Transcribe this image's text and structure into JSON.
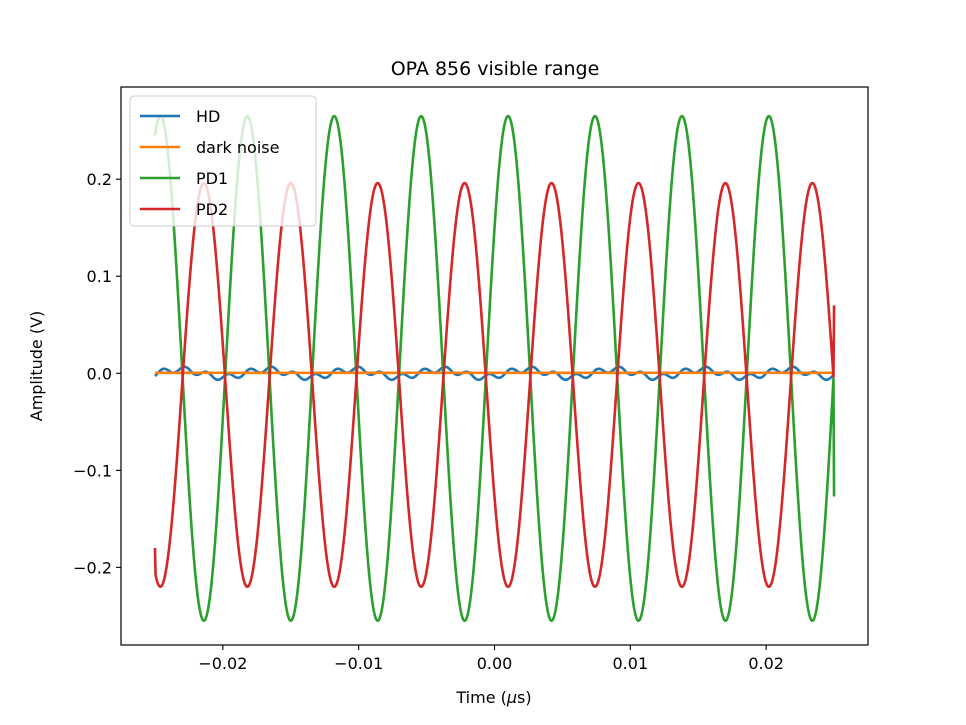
{
  "chart_data": {
    "type": "line",
    "title": "OPA 856 visible range",
    "xlabel": "Time (",
    "xlabel_mu": "μ",
    "xlabel_tail": "s)",
    "ylabel": "Amplitude (V)",
    "xlim": [
      -0.0275,
      0.0275
    ],
    "ylim": [
      -0.28,
      0.295
    ],
    "x_ticks": [
      -0.02,
      -0.01,
      0.0,
      0.01,
      0.02
    ],
    "x_tick_labels": [
      "−0.02",
      "−0.01",
      "0.00",
      "0.01",
      "0.02"
    ],
    "y_ticks": [
      -0.2,
      -0.1,
      0.0,
      0.1,
      0.2
    ],
    "y_tick_labels": [
      "−0.2",
      "−0.1",
      "0.0",
      "0.1",
      "0.2"
    ],
    "legend_position": "top-left",
    "x_range": [
      -0.025,
      0.025
    ],
    "series": [
      {
        "name": "HD",
        "color": "#1f77b4",
        "kind": "ripple",
        "base_amplitude": 0.004,
        "ripple_amplitude": 0.003,
        "period": 0.0064,
        "ripple_period": 0.0016,
        "phase_x": -0.0248
      },
      {
        "name": "dark noise",
        "color": "#ff7f0e",
        "kind": "flat",
        "value": 0.0005
      },
      {
        "name": "PD1",
        "color": "#2ca02c",
        "kind": "sine",
        "amplitude": 0.26,
        "offset": 0.005,
        "period": 0.0064,
        "peak_x": -0.0246,
        "end_value": -0.127
      },
      {
        "name": "PD2",
        "color": "#d62728",
        "kind": "sine",
        "amplitude": 0.208,
        "offset": -0.012,
        "period": 0.0064,
        "peak_x": -0.0214,
        "start_value": -0.18,
        "end_value": 0.07
      }
    ]
  }
}
